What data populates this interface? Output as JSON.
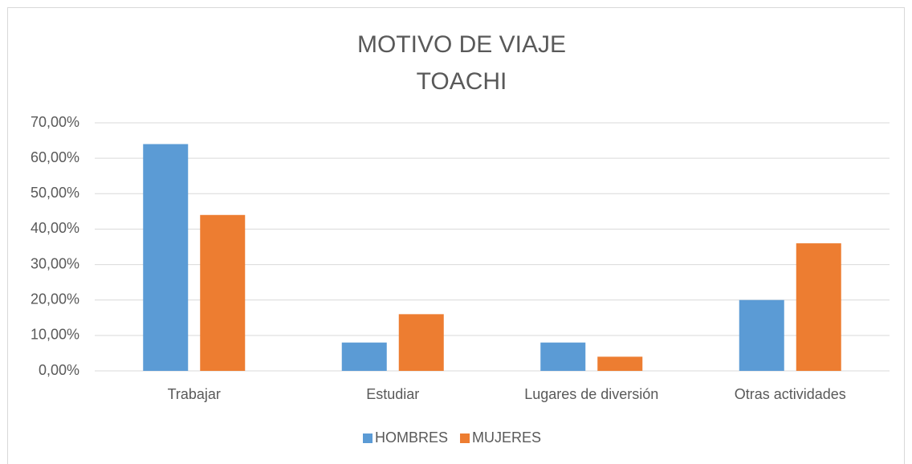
{
  "chart_data": {
    "type": "bar",
    "title": [
      "MOTIVO DE VIAJE",
      "TOACHI"
    ],
    "categories": [
      "Trabajar",
      "Estudiar",
      "Lugares de diversión",
      "Otras actividades"
    ],
    "series": [
      {
        "name": "HOMBRES",
        "color": "#5b9bd5",
        "values": [
          64,
          8,
          8,
          20
        ]
      },
      {
        "name": "MUJERES",
        "color": "#ed7d31",
        "values": [
          44,
          16,
          4,
          36
        ]
      }
    ],
    "ylim": [
      0,
      70
    ],
    "yticks": [
      {
        "value": 0,
        "label": "0,00%"
      },
      {
        "value": 10,
        "label": "10,00%"
      },
      {
        "value": 20,
        "label": "20,00%"
      },
      {
        "value": 30,
        "label": "30,00%"
      },
      {
        "value": 40,
        "label": "40,00%"
      },
      {
        "value": 50,
        "label": "50,00%"
      },
      {
        "value": 60,
        "label": "60,00%"
      },
      {
        "value": 70,
        "label": "70,00%"
      }
    ],
    "grid": true,
    "legend": "bottom"
  }
}
